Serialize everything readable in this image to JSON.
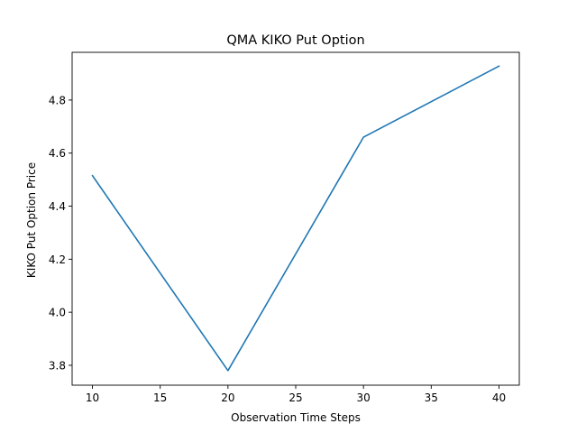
{
  "chart_data": {
    "type": "line",
    "title": "QMA KIKO Put Option",
    "xlabel": "Observation Time Steps",
    "ylabel": "KIKO Put Option Price",
    "xlim": [
      8.5,
      41.5
    ],
    "ylim": [
      3.725,
      4.98
    ],
    "xticks": [
      10,
      15,
      20,
      25,
      30,
      35,
      40
    ],
    "yticks": [
      3.8,
      4.0,
      4.2,
      4.4,
      4.6,
      4.8
    ],
    "grid": false,
    "series": [
      {
        "color": "#1f77b4",
        "x": [
          10,
          20,
          30,
          40
        ],
        "y": [
          4.515,
          3.78,
          4.66,
          4.928
        ]
      }
    ]
  }
}
